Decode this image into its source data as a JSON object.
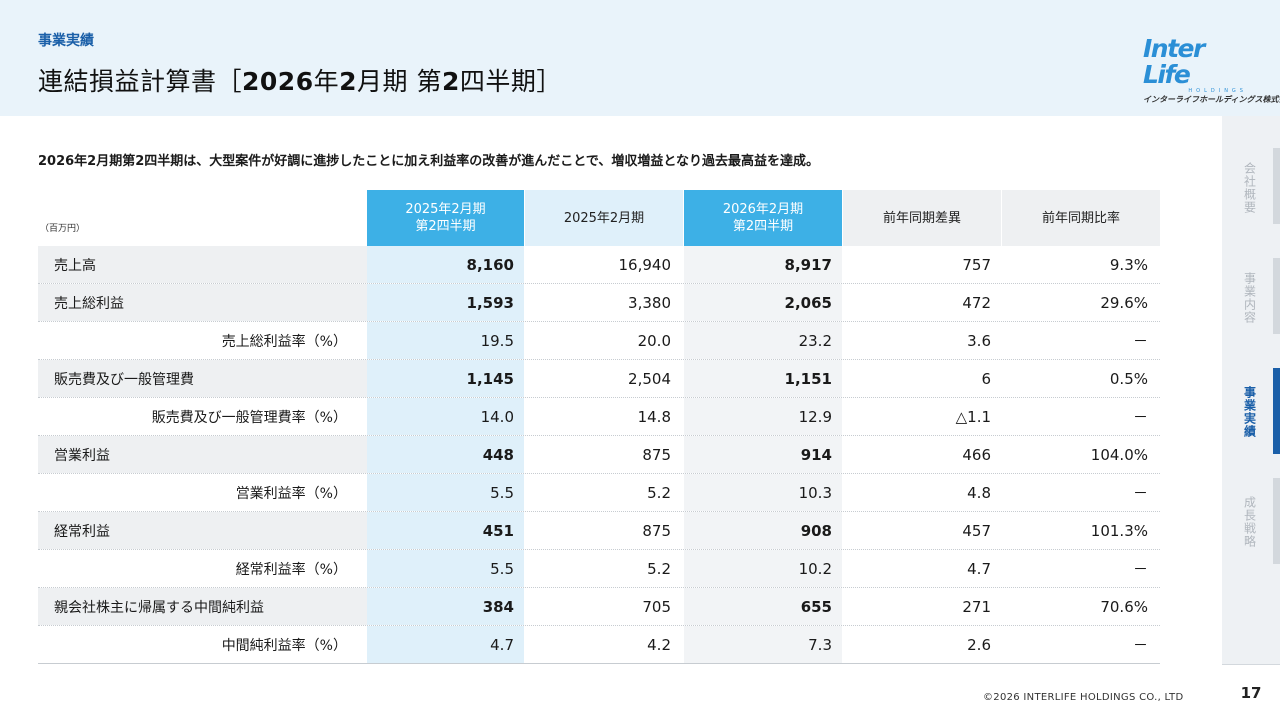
{
  "header": {
    "kicker": "事業実績",
    "title_main": "連結損益計算書［",
    "title_bold": "2026",
    "title_mid": "年",
    "title_bold2": "2",
    "title_mid2": "月期 第",
    "title_bold3": "2",
    "title_end": "四半期］"
  },
  "logo": {
    "main": "Inter Life",
    "sub1": "HOLDINGS",
    "sub2": "インターライフホールディングス株式会社"
  },
  "lead": "2026年2月期第2四半期は、大型案件が好調に進捗したことに加え利益率の改善が進んだことで、増収増益となり過去最高益を達成。",
  "table": {
    "unit": "（百万円）",
    "headers": [
      "2025年2月期\n第2四半期",
      "2025年2月期",
      "2026年2月期\n第2四半期",
      "前年同期差異",
      "前年同期比率"
    ],
    "rows": [
      {
        "label": "売上高",
        "v": [
          "8,160",
          "16,940",
          "8,917",
          "757",
          "9.3%"
        ],
        "sub": false
      },
      {
        "label": "売上総利益",
        "v": [
          "1,593",
          "3,380",
          "2,065",
          "472",
          "29.6%"
        ],
        "sub": false
      },
      {
        "label": "売上総利益率（%）",
        "v": [
          "19.5",
          "20.0",
          "23.2",
          "3.6",
          "－"
        ],
        "sub": true
      },
      {
        "label": "販売費及び一般管理費",
        "v": [
          "1,145",
          "2,504",
          "1,151",
          "6",
          "0.5%"
        ],
        "sub": false
      },
      {
        "label": "販売費及び一般管理費率（%）",
        "v": [
          "14.0",
          "14.8",
          "12.9",
          "△1.1",
          "－"
        ],
        "sub": true
      },
      {
        "label": "営業利益",
        "v": [
          "448",
          "875",
          "914",
          "466",
          "104.0%"
        ],
        "sub": false
      },
      {
        "label": "営業利益率（%）",
        "v": [
          "5.5",
          "5.2",
          "10.3",
          "4.8",
          "－"
        ],
        "sub": true
      },
      {
        "label": "経常利益",
        "v": [
          "451",
          "875",
          "908",
          "457",
          "101.3%"
        ],
        "sub": false
      },
      {
        "label": "経常利益率（%）",
        "v": [
          "5.5",
          "5.2",
          "10.2",
          "4.7",
          "－"
        ],
        "sub": true
      },
      {
        "label": "親会社株主に帰属する中間純利益",
        "v": [
          "384",
          "705",
          "655",
          "271",
          "70.6%"
        ],
        "sub": false
      },
      {
        "label": "中間純利益率（%）",
        "v": [
          "4.7",
          "4.2",
          "7.3",
          "2.6",
          "－"
        ],
        "sub": true
      }
    ]
  },
  "sidenav": {
    "items": [
      {
        "label": "会社概要",
        "active": false
      },
      {
        "label": "事業内容",
        "active": false
      },
      {
        "label": "事業実績",
        "active": true
      },
      {
        "label": "成長戦略",
        "active": false
      }
    ]
  },
  "footer": {
    "copyright": "©2026 INTERLIFE HOLDINGS CO., LTD",
    "page": "17"
  },
  "colors": {
    "accent": "#1a5fa8",
    "header_highlight": "#3db0e6",
    "column_highlight": "#dff0fa"
  }
}
